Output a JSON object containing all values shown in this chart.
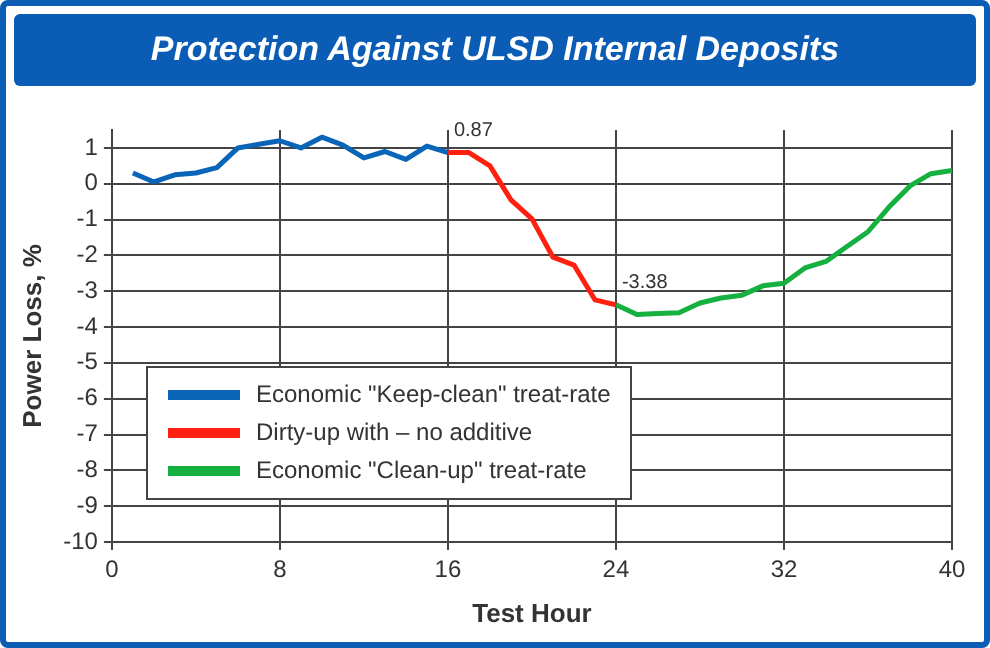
{
  "chart_data": {
    "type": "line",
    "title": "Protection Against ULSD Internal Deposits",
    "xlabel": "Test Hour",
    "ylabel": "Power Loss, %",
    "xlim": [
      0,
      40
    ],
    "xticks": [
      0,
      8,
      16,
      24,
      32,
      40
    ],
    "ylim": [
      -10,
      1.5
    ],
    "yticks": [
      -10,
      -9,
      -8,
      -7,
      -6,
      -5,
      -4,
      -3,
      -2,
      -1,
      0,
      1
    ],
    "grid": true,
    "legend": "bottom left",
    "marker": "none",
    "line_style": "solid",
    "series": [
      {
        "name": "Economic \"Keep-clean\" treat-rate",
        "color": "#0a64b8",
        "x": [
          1,
          2,
          3,
          4,
          5,
          6,
          7,
          8,
          9,
          10,
          11,
          12,
          13,
          14,
          15,
          16
        ],
        "values": [
          0.3,
          0.05,
          0.25,
          0.3,
          0.45,
          1.0,
          1.1,
          1.2,
          1.0,
          1.3,
          1.08,
          0.72,
          0.9,
          0.68,
          1.05,
          0.87
        ]
      },
      {
        "name": "Dirty-up with – no additive",
        "color": "#ff2010",
        "x": [
          16,
          17,
          18,
          19,
          20,
          21,
          22,
          23,
          24
        ],
        "values": [
          0.87,
          0.87,
          0.5,
          -0.45,
          -0.98,
          -2.05,
          -2.27,
          -3.24,
          -3.38
        ]
      },
      {
        "name": "Economic \"Clean-up\" treat-rate",
        "color": "#16b040",
        "x": [
          24,
          25,
          26,
          27,
          28,
          29,
          30,
          31,
          32,
          33,
          34,
          35,
          36,
          37,
          38,
          39,
          40
        ],
        "values": [
          -3.38,
          -3.65,
          -3.62,
          -3.6,
          -3.33,
          -3.19,
          -3.11,
          -2.85,
          -2.78,
          -2.35,
          -2.17,
          -1.75,
          -1.34,
          -0.65,
          -0.06,
          0.28,
          0.37
        ]
      }
    ],
    "annotations": [
      {
        "text": "0.87",
        "x": 16,
        "y": 0.87
      },
      {
        "text": "-3.38",
        "x": 24,
        "y": -3.38
      }
    ]
  }
}
